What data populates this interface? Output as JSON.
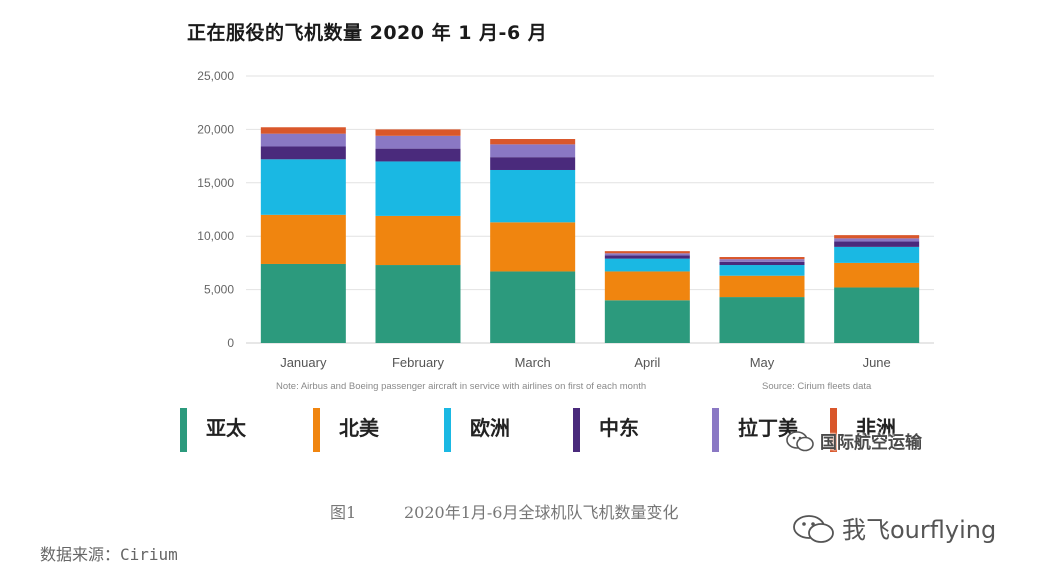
{
  "chart_title": "正在服役的飞机数量 2020 年 1 月-6 月",
  "chart_data": {
    "type": "bar",
    "stacked": true,
    "title": "正在服役的飞机数量 2020 年 1 月-6 月",
    "xlabel": "",
    "ylabel": "",
    "ylim": [
      0,
      25000
    ],
    "yticks": [
      0,
      5000,
      10000,
      15000,
      20000,
      25000
    ],
    "ytick_labels": [
      "0",
      "5,000",
      "10,000",
      "15,000",
      "20,000",
      "25,000"
    ],
    "grid": true,
    "categories": [
      "January",
      "February",
      "March",
      "April",
      "May",
      "June"
    ],
    "series": [
      {
        "name": "亚太",
        "color": "#2c9a7d",
        "values": [
          7400,
          7300,
          6700,
          4000,
          4300,
          5200
        ]
      },
      {
        "name": "北美",
        "color": "#f0850f",
        "values": [
          4600,
          4600,
          4600,
          2700,
          2000,
          2300
        ]
      },
      {
        "name": "欧洲",
        "color": "#1ab8e3",
        "values": [
          5200,
          5100,
          4900,
          1200,
          1000,
          1500
        ]
      },
      {
        "name": "中东",
        "color": "#4a2a7c",
        "values": [
          1200,
          1200,
          1200,
          300,
          300,
          500
        ]
      },
      {
        "name": "拉丁美",
        "color": "#8a78c4",
        "values": [
          1200,
          1200,
          1200,
          200,
          250,
          300
        ]
      },
      {
        "name": "非洲",
        "color": "#d9572b",
        "values": [
          600,
          600,
          500,
          200,
          200,
          300
        ]
      }
    ],
    "note": "Note: Airbus and Boeing passenger aircraft in service with airlines on first of each month",
    "source": "Source: Cirium fleets data",
    "legend_position": "bottom"
  },
  "watermark_badge": "国际航空运输",
  "caption": {
    "label": "图1",
    "text": "2020年1月-6月全球机队飞机数量变化"
  },
  "data_source": "数据来源：Cirium",
  "watermark_bottom": "我飞ourflying"
}
